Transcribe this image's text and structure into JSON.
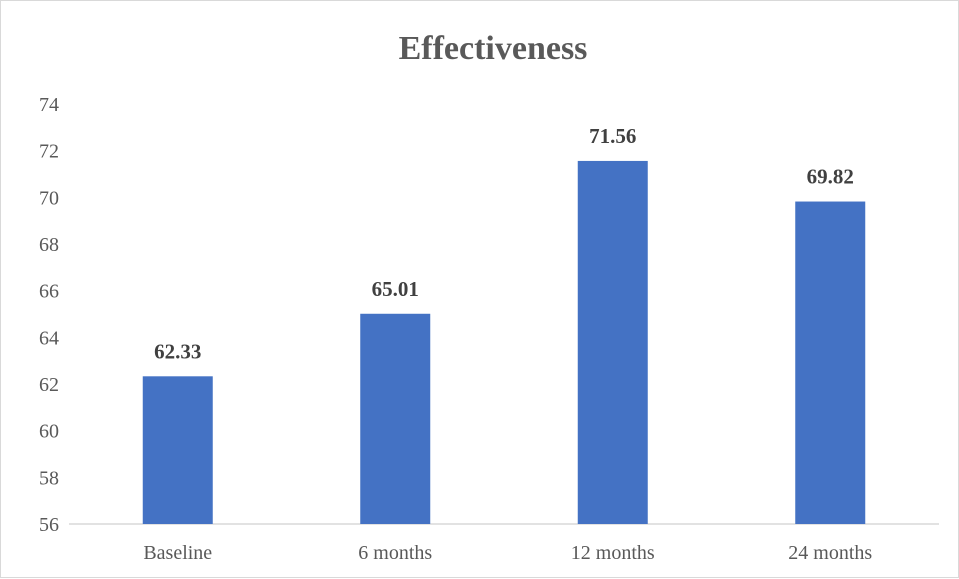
{
  "chart_data": {
    "type": "bar",
    "title": "Effectiveness",
    "xlabel": "",
    "ylabel": "",
    "categories": [
      "Baseline",
      "6 months",
      "12 months",
      "24 months"
    ],
    "values": [
      62.33,
      65.01,
      71.56,
      69.82
    ],
    "data_labels": [
      "62.33",
      "65.01",
      "71.56",
      "69.82"
    ],
    "ylim": [
      56,
      74
    ],
    "yticks": [
      56,
      58,
      60,
      62,
      64,
      66,
      68,
      70,
      72,
      74
    ],
    "grid": false,
    "legend": "none",
    "bar_color": "#4472C4",
    "axis_color": "#d9d9d9"
  }
}
